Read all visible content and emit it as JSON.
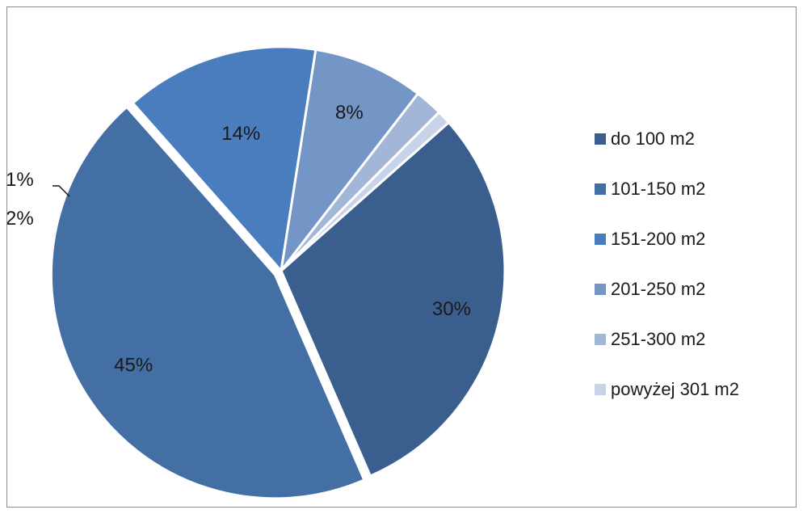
{
  "chart_data": {
    "type": "pie",
    "title": "",
    "categories": [
      "do 100 m2",
      "101-150 m2",
      "151-200 m2",
      "201-250 m2",
      "251-300 m2",
      "powyżej 301 m2"
    ],
    "values": [
      30,
      45,
      14,
      8,
      2,
      1
    ],
    "value_labels": [
      "30%",
      "45%",
      "14%",
      "8%",
      "2%",
      "1%"
    ],
    "colors": [
      "#3a5f8f",
      "#436fa5",
      "#4a7dbd",
      "#7396c7",
      "#a2b6d8",
      "#c9d3e8"
    ],
    "exploded_category": "101-150 m2",
    "legend_position": "right"
  }
}
